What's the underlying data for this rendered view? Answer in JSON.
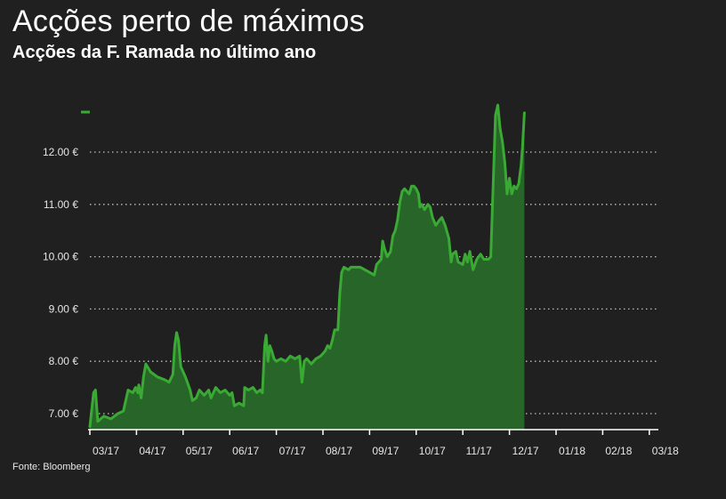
{
  "title": "Acções perto de máximos",
  "subtitle": "Acções da F. Ramada no último ano",
  "source": "Fonte: Bloomberg",
  "colors": {
    "background": "#202020",
    "line": "#3aaa35",
    "area": "#276628",
    "grid": "#bfbfbf",
    "text": "#e6e6e6"
  },
  "chart_data": {
    "type": "area",
    "title": "Acções perto de máximos",
    "subtitle": "Acções da F. Ramada no último ano",
    "xlabel": "",
    "ylabel": "",
    "ylim": [
      6.65,
      12.95
    ],
    "yticks": [
      7,
      8,
      9,
      10,
      11,
      12
    ],
    "ytick_labels": [
      "7.00 €",
      "8.00 €",
      "9.00 €",
      "10.00 €",
      "11.00 €",
      "12.00 €"
    ],
    "xticks": [
      "03/17",
      "04/17",
      "05/17",
      "06/17",
      "07/17",
      "08/17",
      "09/17",
      "10/17",
      "11/17",
      "12/17",
      "01/18",
      "02/18",
      "03/18"
    ],
    "grid": true,
    "legend": "top-left",
    "series": [
      {
        "values": [
          [
            0,
            6.75
          ],
          [
            0.08,
            7.4
          ],
          [
            0.12,
            7.45
          ],
          [
            0.17,
            6.85
          ],
          [
            0.3,
            6.95
          ],
          [
            0.45,
            6.9
          ],
          [
            0.6,
            7.0
          ],
          [
            0.72,
            7.05
          ],
          [
            0.82,
            7.45
          ],
          [
            0.92,
            7.4
          ],
          [
            0.98,
            7.5
          ],
          [
            1.03,
            7.4
          ],
          [
            1.05,
            7.55
          ],
          [
            1.1,
            7.3
          ],
          [
            1.15,
            7.7
          ],
          [
            1.2,
            7.95
          ],
          [
            1.3,
            7.8
          ],
          [
            1.45,
            7.7
          ],
          [
            1.6,
            7.65
          ],
          [
            1.7,
            7.6
          ],
          [
            1.78,
            7.75
          ],
          [
            1.82,
            8.3
          ],
          [
            1.86,
            8.55
          ],
          [
            1.9,
            8.4
          ],
          [
            1.95,
            7.9
          ],
          [
            2.05,
            7.7
          ],
          [
            2.15,
            7.45
          ],
          [
            2.2,
            7.25
          ],
          [
            2.28,
            7.3
          ],
          [
            2.35,
            7.45
          ],
          [
            2.45,
            7.35
          ],
          [
            2.55,
            7.45
          ],
          [
            2.6,
            7.3
          ],
          [
            2.7,
            7.5
          ],
          [
            2.8,
            7.4
          ],
          [
            2.9,
            7.45
          ],
          [
            3.0,
            7.35
          ],
          [
            3.05,
            7.4
          ],
          [
            3.1,
            7.15
          ],
          [
            3.2,
            7.2
          ],
          [
            3.3,
            7.15
          ],
          [
            3.32,
            7.5
          ],
          [
            3.4,
            7.45
          ],
          [
            3.5,
            7.5
          ],
          [
            3.58,
            7.4
          ],
          [
            3.65,
            7.45
          ],
          [
            3.7,
            7.4
          ],
          [
            3.75,
            8.3
          ],
          [
            3.78,
            8.5
          ],
          [
            3.82,
            8.0
          ],
          [
            3.86,
            8.3
          ],
          [
            3.9,
            8.2
          ],
          [
            3.95,
            8.05
          ],
          [
            4.0,
            8.0
          ],
          [
            4.1,
            8.05
          ],
          [
            4.2,
            8.0
          ],
          [
            4.3,
            8.1
          ],
          [
            4.4,
            8.05
          ],
          [
            4.5,
            8.1
          ],
          [
            4.55,
            7.6
          ],
          [
            4.6,
            8.0
          ],
          [
            4.65,
            8.05
          ],
          [
            4.75,
            7.95
          ],
          [
            4.85,
            8.05
          ],
          [
            4.95,
            8.1
          ],
          [
            5.0,
            8.15
          ],
          [
            5.05,
            8.2
          ],
          [
            5.1,
            8.3
          ],
          [
            5.15,
            8.25
          ],
          [
            5.2,
            8.4
          ],
          [
            5.25,
            8.6
          ],
          [
            5.32,
            8.6
          ],
          [
            5.36,
            9.3
          ],
          [
            5.4,
            9.7
          ],
          [
            5.45,
            9.8
          ],
          [
            5.55,
            9.75
          ],
          [
            5.6,
            9.8
          ],
          [
            5.7,
            9.8
          ],
          [
            5.8,
            9.8
          ],
          [
            5.9,
            9.75
          ],
          [
            6.0,
            9.7
          ],
          [
            6.1,
            9.65
          ],
          [
            6.15,
            9.85
          ],
          [
            6.2,
            9.9
          ],
          [
            6.25,
            9.95
          ],
          [
            6.28,
            10.3
          ],
          [
            6.32,
            10.15
          ],
          [
            6.38,
            10.0
          ],
          [
            6.45,
            10.1
          ],
          [
            6.5,
            10.4
          ],
          [
            6.55,
            10.5
          ],
          [
            6.6,
            10.7
          ],
          [
            6.65,
            11.05
          ],
          [
            6.7,
            11.25
          ],
          [
            6.75,
            11.3
          ],
          [
            6.8,
            11.25
          ],
          [
            6.85,
            11.2
          ],
          [
            6.9,
            11.35
          ],
          [
            6.95,
            11.35
          ],
          [
            7.0,
            11.3
          ],
          [
            7.05,
            11.2
          ],
          [
            7.08,
            10.95
          ],
          [
            7.12,
            11.0
          ],
          [
            7.18,
            10.9
          ],
          [
            7.25,
            11.0
          ],
          [
            7.3,
            10.95
          ],
          [
            7.35,
            10.75
          ],
          [
            7.42,
            10.6
          ],
          [
            7.5,
            10.7
          ],
          [
            7.55,
            10.75
          ],
          [
            7.62,
            10.6
          ],
          [
            7.7,
            10.35
          ],
          [
            7.75,
            9.9
          ],
          [
            7.78,
            10.05
          ],
          [
            7.85,
            10.1
          ],
          [
            7.9,
            9.9
          ],
          [
            8.0,
            9.85
          ],
          [
            8.05,
            10.05
          ],
          [
            8.1,
            9.9
          ],
          [
            8.15,
            10.1
          ],
          [
            8.22,
            9.75
          ],
          [
            8.3,
            9.95
          ],
          [
            8.38,
            10.05
          ],
          [
            8.45,
            9.95
          ],
          [
            8.55,
            9.95
          ],
          [
            8.6,
            10.0
          ],
          [
            8.7,
            12.7
          ],
          [
            8.75,
            12.9
          ],
          [
            8.8,
            12.45
          ],
          [
            8.85,
            12.2
          ],
          [
            8.9,
            11.8
          ],
          [
            8.95,
            11.2
          ],
          [
            9.0,
            11.5
          ],
          [
            9.05,
            11.2
          ],
          [
            9.1,
            11.35
          ],
          [
            9.15,
            11.3
          ],
          [
            9.2,
            11.4
          ],
          [
            9.25,
            11.75
          ],
          [
            9.28,
            12.1
          ],
          [
            9.32,
            12.75
          ]
        ]
      }
    ]
  }
}
